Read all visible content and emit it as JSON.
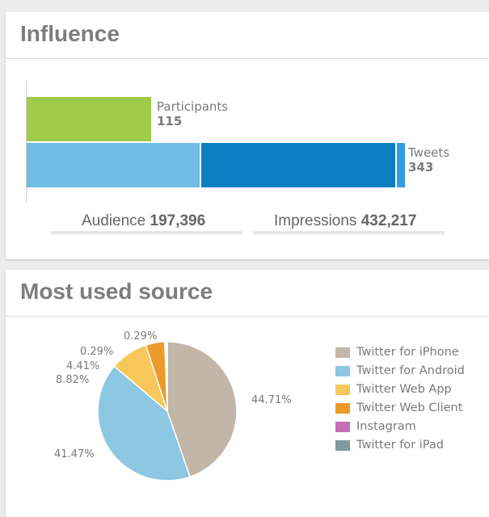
{
  "influence": {
    "title": "Influence",
    "participants_label": "Participants",
    "participants_value": "115",
    "tweets_label": "Tweets",
    "tweets_value": "343",
    "audience_label": "Audience",
    "audience_value": "197,396",
    "impressions_label": "Impressions",
    "impressions_value": "432,217",
    "colors": {
      "participants": "#a0cb4a",
      "audience": "#6fbde3",
      "impressions": "#0a7fc1",
      "tweets": "#2e9ee0"
    }
  },
  "source": {
    "title": "Most used source",
    "legend": [
      {
        "label": "Twitter for iPhone",
        "color": "#c2b6a8"
      },
      {
        "label": "Twitter for Android",
        "color": "#8dc7e1"
      },
      {
        "label": "Twitter Web App",
        "color": "#f6c85c"
      },
      {
        "label": "Twitter Web Client",
        "color": "#ec9b2a"
      },
      {
        "label": "Instagram",
        "color": "#c470b7"
      },
      {
        "label": "Twitter for iPad",
        "color": "#7f9aa0"
      }
    ]
  },
  "chart_data": {
    "type": "pie",
    "categories": [
      "Twitter for iPhone",
      "Twitter for Android",
      "Twitter Web App",
      "Twitter Web Client",
      "Instagram",
      "Twitter for iPad"
    ],
    "values": [
      44.71,
      41.47,
      8.82,
      4.41,
      0.29,
      0.29
    ],
    "labels": [
      "44.71%",
      "41.47%",
      "8.82%",
      "4.41%",
      "0.29%",
      "0.29%"
    ]
  }
}
